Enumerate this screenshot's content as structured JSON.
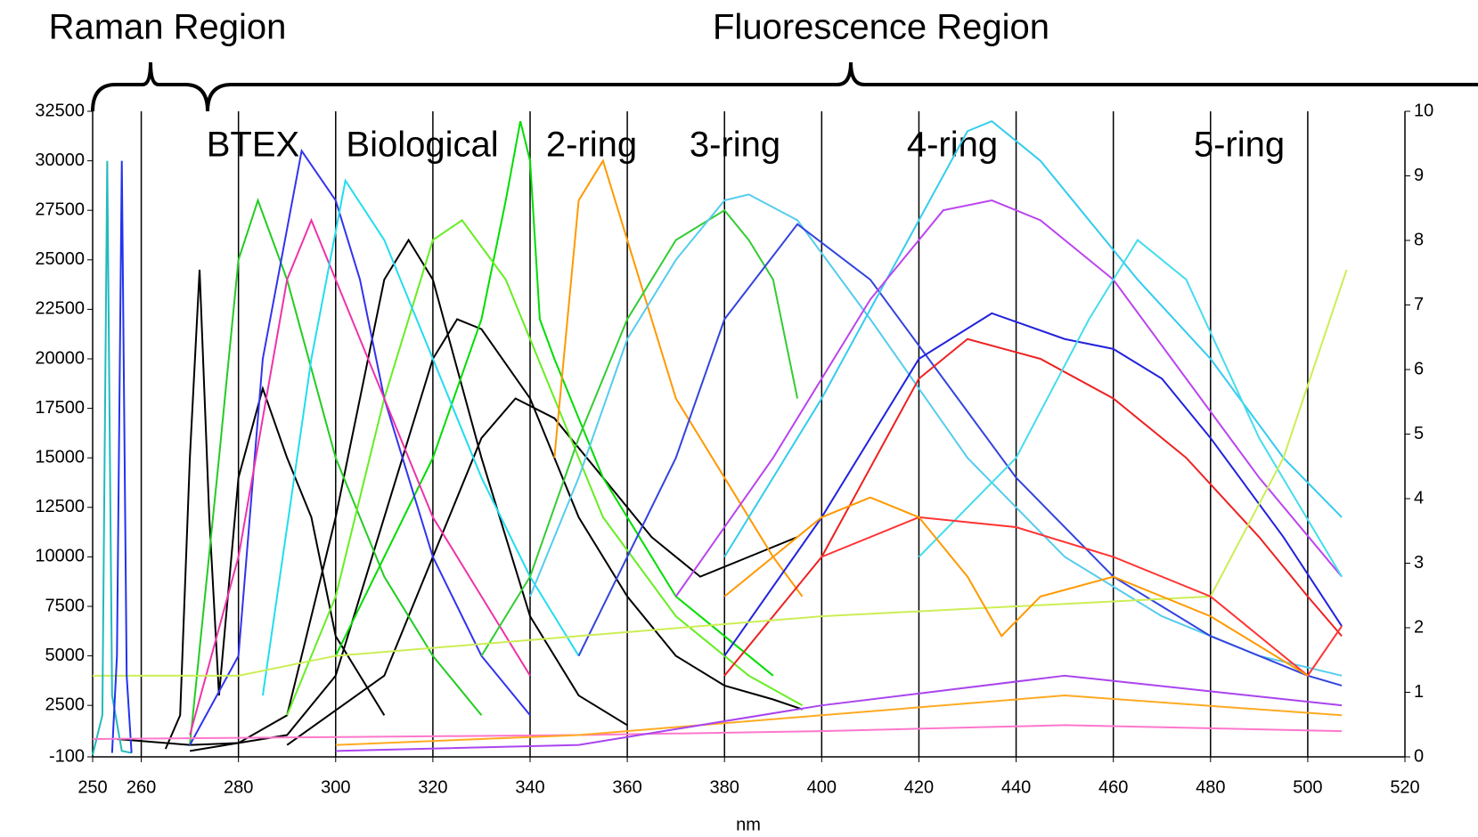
{
  "chart_data": {
    "type": "line",
    "x_label": "nm",
    "annotations": [
      "Raman Region",
      "Fluorescence Region",
      "BTEX",
      "Biological",
      "2-ring",
      "3-ring",
      "4-ring",
      "5-ring"
    ],
    "xlim": [
      250,
      520
    ],
    "xticks": [
      250,
      260,
      280,
      300,
      320,
      340,
      360,
      380,
      400,
      420,
      440,
      460,
      480,
      500,
      520
    ],
    "ylim": [
      -100,
      32500
    ],
    "yticks": [
      -100,
      2500,
      5000,
      7500,
      10000,
      12500,
      15000,
      17500,
      20000,
      22500,
      25000,
      27500,
      30000,
      32500
    ],
    "y2lim": [
      0,
      10
    ],
    "y2ticks": [
      0,
      1,
      2,
      3,
      4,
      5,
      6,
      7,
      8,
      9,
      10
    ],
    "grid": true,
    "series": [
      {
        "color": "#000000",
        "x": [
          255,
          270,
          280,
          290,
          300,
          310,
          315,
          320,
          330,
          340,
          350,
          360
        ],
        "values": [
          800,
          500,
          600,
          2000,
          12000,
          24000,
          26000,
          24000,
          15000,
          7000,
          3000,
          1500
        ]
      },
      {
        "color": "#000000",
        "x": [
          270,
          290,
          300,
          310,
          320,
          325,
          330,
          340,
          350,
          360,
          370,
          380,
          390,
          396
        ],
        "values": [
          200,
          1000,
          4000,
          12000,
          20000,
          22000,
          21500,
          18000,
          12000,
          8000,
          5000,
          3500,
          2800,
          2300
        ]
      },
      {
        "color": "#000000",
        "x": [
          290,
          310,
          320,
          330,
          337,
          345,
          355,
          365,
          375,
          385,
          395
        ],
        "values": [
          500,
          4000,
          10000,
          16000,
          18000,
          17000,
          14000,
          11000,
          9000,
          10000,
          11000
        ]
      },
      {
        "color": "#000000",
        "x": [
          265,
          268,
          270,
          272,
          274,
          276,
          280,
          285,
          290,
          295,
          300,
          310
        ],
        "values": [
          300,
          2000,
          15000,
          24500,
          12000,
          3000,
          14000,
          18500,
          15000,
          12000,
          6000,
          2000
        ]
      },
      {
        "color": "#00dd00",
        "x": [
          300,
          320,
          330,
          335,
          338,
          340,
          342,
          345,
          355,
          370,
          390
        ],
        "values": [
          5000,
          15000,
          22000,
          28000,
          32000,
          30000,
          22000,
          20000,
          14000,
          8000,
          4000
        ]
      },
      {
        "color": "#22cc22",
        "x": [
          270,
          276,
          280,
          284,
          290,
          300,
          310,
          320,
          330
        ],
        "values": [
          500,
          15000,
          25000,
          28000,
          24000,
          15000,
          9000,
          5000,
          2000
        ]
      },
      {
        "color": "#66ee22",
        "x": [
          290,
          300,
          310,
          320,
          326,
          335,
          345,
          355,
          370,
          385,
          396
        ],
        "values": [
          2000,
          8000,
          18000,
          26000,
          27000,
          24000,
          18000,
          12000,
          7000,
          4000,
          2500
        ]
      },
      {
        "color": "#3333ee",
        "x": [
          270,
          280,
          285,
          293,
          300,
          305,
          310,
          320,
          330,
          340
        ],
        "values": [
          500,
          5000,
          20000,
          30500,
          28000,
          24000,
          18000,
          10000,
          5000,
          2000
        ]
      },
      {
        "color": "#ee33aa",
        "x": [
          270,
          280,
          290,
          295,
          300,
          310,
          320,
          330,
          340
        ],
        "values": [
          1000,
          10000,
          24000,
          27000,
          24000,
          18000,
          12000,
          8000,
          4000
        ]
      },
      {
        "color": "#22ddee",
        "x": [
          285,
          295,
          302,
          310,
          320,
          330,
          340,
          350
        ],
        "values": [
          3000,
          20000,
          29000,
          26000,
          20000,
          14000,
          9000,
          5000
        ]
      },
      {
        "color": "#ff9900",
        "x": [
          345,
          350,
          355,
          360,
          370,
          380,
          390,
          396
        ],
        "values": [
          15000,
          28000,
          30000,
          26000,
          18000,
          14000,
          10000,
          8000
        ]
      },
      {
        "color": "#33cc33",
        "x": [
          330,
          340,
          350,
          360,
          370,
          380,
          385,
          390,
          395
        ],
        "values": [
          5000,
          9000,
          16000,
          22000,
          26000,
          27500,
          26000,
          24000,
          18000
        ]
      },
      {
        "color": "#55ccee",
        "x": [
          340,
          350,
          360,
          370,
          380,
          385,
          395,
          410,
          430,
          450,
          470,
          490,
          507
        ],
        "values": [
          8000,
          14000,
          21000,
          25000,
          28000,
          28300,
          27000,
          22000,
          15000,
          10000,
          7000,
          5000,
          4000
        ]
      },
      {
        "color": "#3344dd",
        "x": [
          350,
          370,
          380,
          395,
          410,
          425,
          440,
          460,
          480,
          500,
          507
        ],
        "values": [
          5000,
          15000,
          22000,
          26800,
          24000,
          19000,
          14000,
          9000,
          6000,
          4000,
          3500
        ]
      },
      {
        "color": "#33ccee",
        "x": [
          380,
          400,
          420,
          430,
          435,
          445,
          455,
          465,
          480,
          495,
          507
        ],
        "values": [
          10000,
          18000,
          27000,
          31500,
          32000,
          30000,
          27000,
          24000,
          20000,
          15000,
          12000
        ]
      },
      {
        "color": "#bb44ee",
        "x": [
          370,
          390,
          410,
          425,
          435,
          445,
          460,
          475,
          490,
          507
        ],
        "values": [
          8000,
          15000,
          23000,
          27500,
          28000,
          27000,
          24000,
          19000,
          14000,
          9000
        ]
      },
      {
        "color": "#2222dd",
        "x": [
          380,
          400,
          420,
          435,
          450,
          460,
          470,
          480,
          495,
          507
        ],
        "values": [
          5000,
          12000,
          20000,
          22300,
          21000,
          20500,
          19000,
          16000,
          11000,
          6500
        ]
      },
      {
        "color": "#ee2222",
        "x": [
          380,
          400,
          420,
          430,
          445,
          460,
          475,
          490,
          500,
          507
        ],
        "values": [
          4000,
          10000,
          19000,
          21000,
          20000,
          18000,
          15000,
          11000,
          8000,
          6000
        ]
      },
      {
        "color": "#44ddee",
        "x": [
          420,
          440,
          455,
          465,
          475,
          490,
          507
        ],
        "values": [
          10000,
          15000,
          22000,
          26000,
          24000,
          16000,
          9000
        ]
      },
      {
        "color": "#ccee55",
        "x": [
          250,
          260,
          280,
          300,
          400,
          480,
          495,
          508
        ],
        "values": [
          4000,
          4000,
          4000,
          5000,
          7000,
          8000,
          15000,
          24500
        ]
      },
      {
        "color": "#ff3333",
        "x": [
          400,
          420,
          440,
          460,
          470,
          480,
          490,
          500,
          507
        ],
        "values": [
          10000,
          12000,
          11500,
          10000,
          9000,
          8000,
          6000,
          4000,
          6500
        ]
      },
      {
        "color": "#22bbbb",
        "x": [
          250,
          252,
          253,
          254,
          256,
          258
        ],
        "values": [
          0,
          2000,
          30000,
          3000,
          200,
          100
        ]
      },
      {
        "color": "#2233ee",
        "x": [
          254,
          255,
          256,
          257,
          258
        ],
        "values": [
          100,
          5000,
          30000,
          4000,
          100
        ]
      },
      {
        "color": "#ff77cc",
        "x": [
          250,
          300,
          350,
          400,
          450,
          507
        ],
        "values": [
          800,
          900,
          1000,
          1200,
          1500,
          1200
        ]
      },
      {
        "color": "#ffaa22",
        "x": [
          300,
          350,
          400,
          450,
          507
        ],
        "values": [
          500,
          1000,
          2000,
          3000,
          2000
        ]
      },
      {
        "color": "#ff9900",
        "x": [
          380,
          400,
          410,
          420,
          430,
          437,
          445,
          460,
          480,
          500
        ],
        "values": [
          8000,
          12000,
          13000,
          12000,
          9000,
          6000,
          8000,
          9000,
          7000,
          4000
        ]
      },
      {
        "color": "#aa44ee",
        "x": [
          300,
          350,
          400,
          450,
          507
        ],
        "values": [
          200,
          500,
          2500,
          4000,
          2500
        ]
      }
    ]
  }
}
